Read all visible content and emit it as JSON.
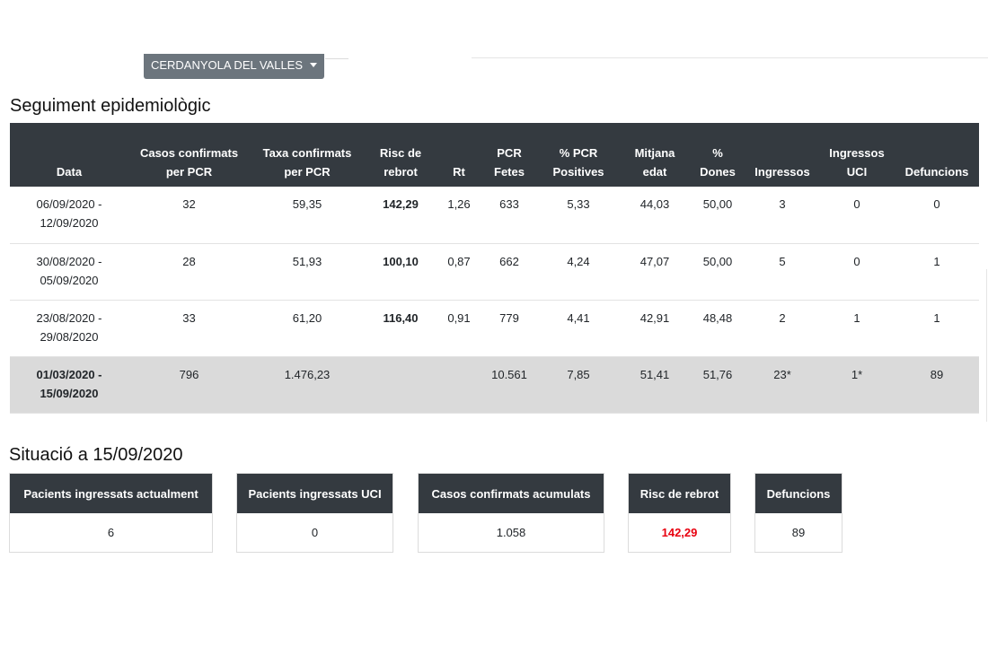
{
  "municipality_selector": {
    "label": "CERDANYOLA DEL VALLES"
  },
  "seguiment": {
    "title": "Seguiment epidemiològic",
    "headers": [
      [
        "Data"
      ],
      [
        "Casos confirmats",
        "per PCR"
      ],
      [
        "Taxa confirmats",
        "per PCR"
      ],
      [
        "Risc de",
        "rebrot"
      ],
      [
        "Rt"
      ],
      [
        "PCR",
        "Fetes"
      ],
      [
        "% PCR",
        "Positives"
      ],
      [
        "Mitjana",
        "edat"
      ],
      [
        "%",
        "Dones"
      ],
      [
        "Ingressos"
      ],
      [
        "Ingressos",
        "UCI"
      ],
      [
        "Defuncions"
      ]
    ],
    "rows": [
      {
        "date": [
          "06/09/2020 -",
          "12/09/2020"
        ],
        "casos": "32",
        "taxa": "59,35",
        "risc": "142,29",
        "rt": "1,26",
        "pcr": "633",
        "pct_pcr": "5,33",
        "edat": "44,03",
        "dones": "50,00",
        "ingressos": "3",
        "uci": "0",
        "defuncions": "0"
      },
      {
        "date": [
          "30/08/2020 -",
          "05/09/2020"
        ],
        "casos": "28",
        "taxa": "51,93",
        "risc": "100,10",
        "rt": "0,87",
        "pcr": "662",
        "pct_pcr": "4,24",
        "edat": "47,07",
        "dones": "50,00",
        "ingressos": "5",
        "uci": "0",
        "defuncions": "1"
      },
      {
        "date": [
          "23/08/2020 -",
          "29/08/2020"
        ],
        "casos": "33",
        "taxa": "61,20",
        "risc": "116,40",
        "rt": "0,91",
        "pcr": "779",
        "pct_pcr": "4,41",
        "edat": "42,91",
        "dones": "48,48",
        "ingressos": "2",
        "uci": "1",
        "defuncions": "1"
      }
    ],
    "total": {
      "date": [
        "01/03/2020 -",
        "15/09/2020"
      ],
      "casos": "796",
      "taxa": "1.476,23",
      "risc": "",
      "rt": "",
      "pcr": "10.561",
      "pct_pcr": "7,85",
      "edat": "51,41",
      "dones": "51,76",
      "ingressos": "23*",
      "uci": "1*",
      "defuncions": "89"
    }
  },
  "situacio": {
    "title": "Situació a 15/09/2020",
    "cards": [
      {
        "label": "Pacients ingressats actualment",
        "value": "6"
      },
      {
        "label": "Pacients ingressats UCI",
        "value": "0"
      },
      {
        "label": "Casos confirmats acumulats",
        "value": "1.058"
      },
      {
        "label": "Risc de rebrot",
        "value": "142,29"
      },
      {
        "label": "Defuncions",
        "value": "89"
      }
    ]
  },
  "colors": {
    "header_bg": "#343a40",
    "risk_red": "#e8000f",
    "total_row_bg": "#dadada",
    "dropdown_bg": "#6c757d"
  }
}
